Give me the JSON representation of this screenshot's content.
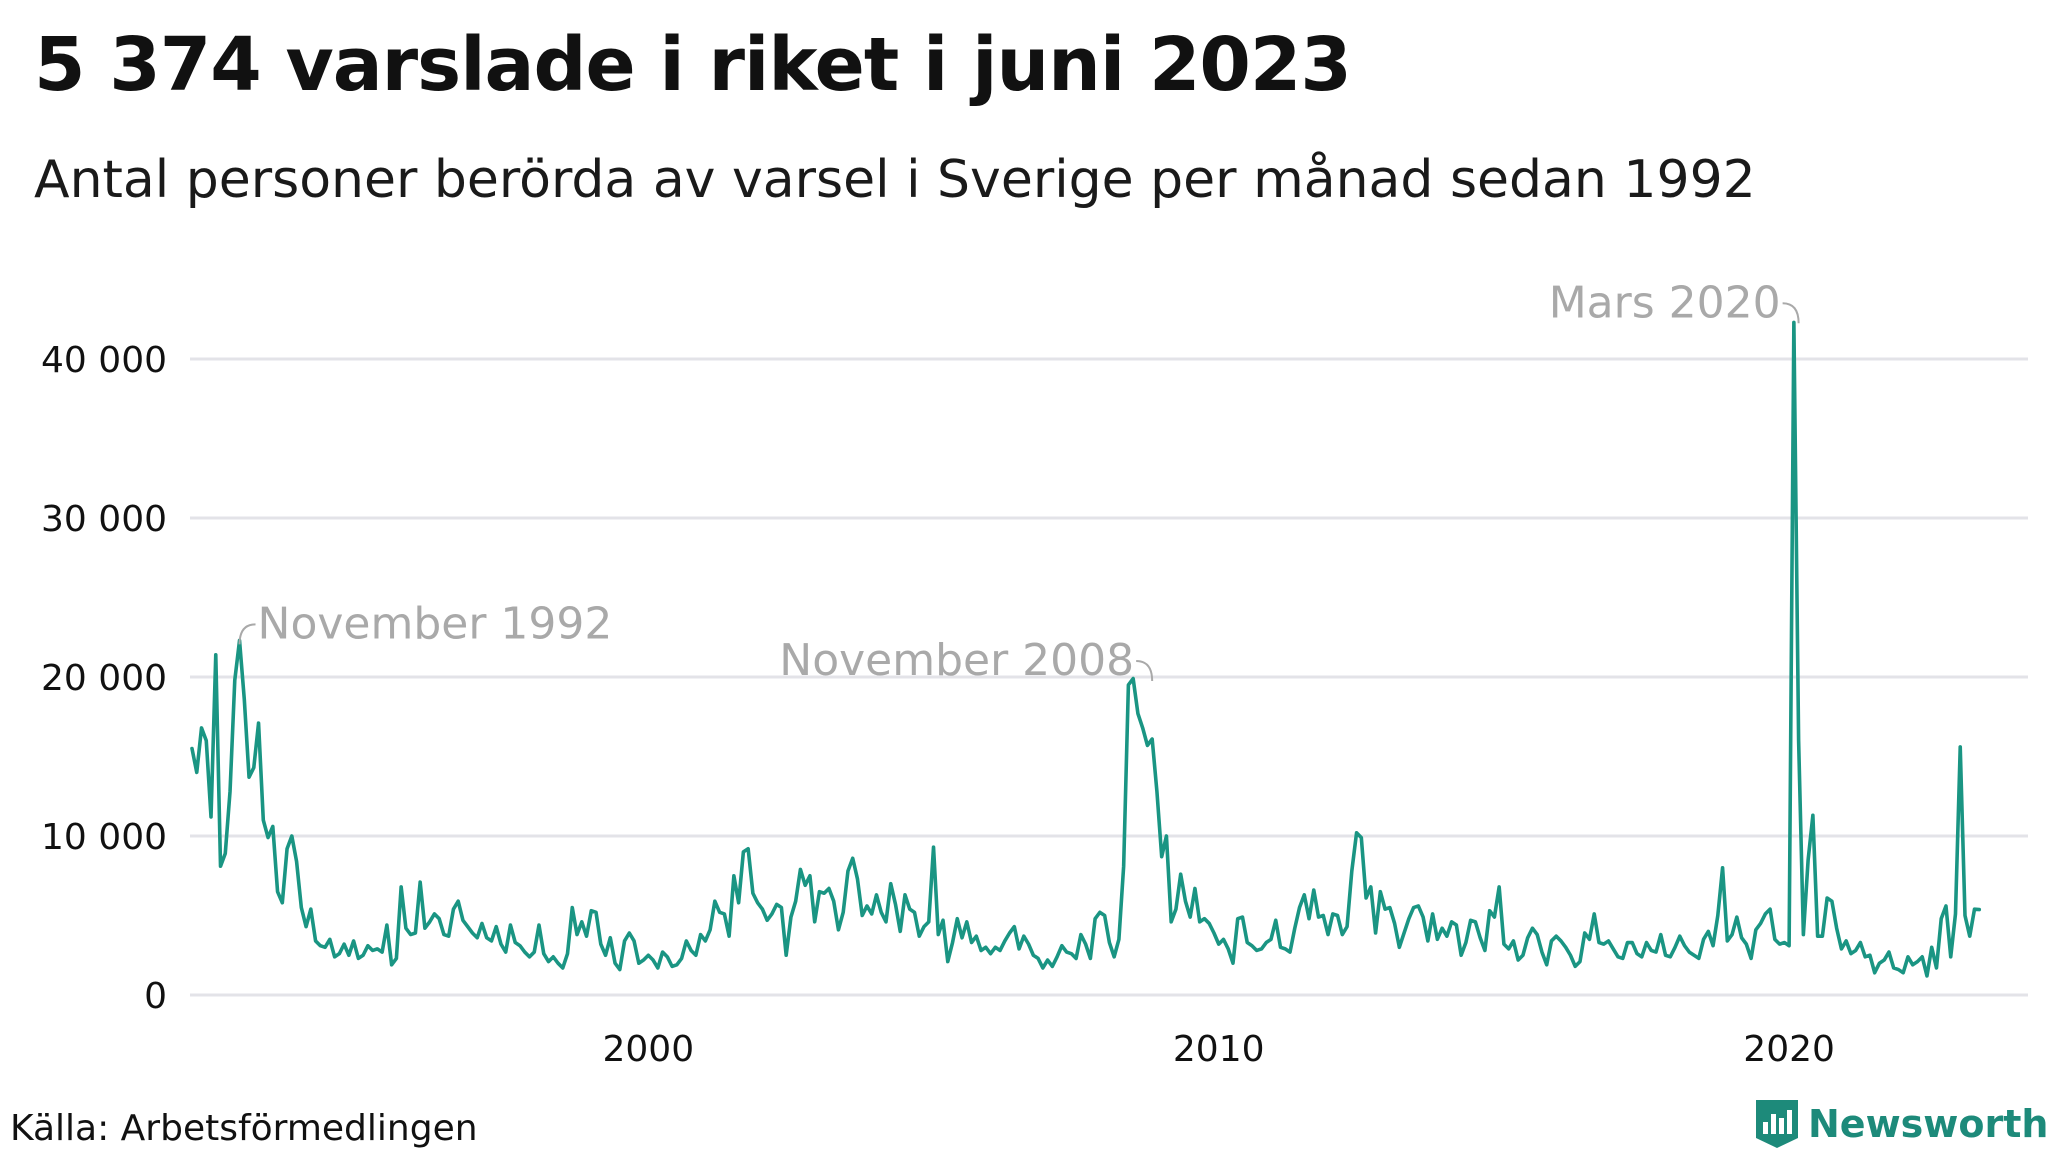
{
  "header": {
    "title": "5 374 varslade i riket i juni 2023",
    "subtitle": "Antal personer berörda av varsel i Sverige per månad sedan 1992"
  },
  "footer": {
    "source": "Källa: Arbetsförmedlingen",
    "logo_text": "Newsworthy"
  },
  "colors": {
    "line": "#1a9583",
    "grid": "#e3e3e8",
    "annotation": "#a9a9a9",
    "brand": "#1d8a7a"
  },
  "icons": {
    "logo": "newsworthy-logo-icon"
  },
  "chart_data": {
    "type": "line",
    "title": "5 374 varslade i riket i juni 2023",
    "subtitle": "Antal personer berörda av varsel i Sverige per månad sedan 1992",
    "xlabel": "",
    "ylabel": "",
    "x_start": "1992-01",
    "x_end": "2023-06",
    "x_frequency": "monthly",
    "x_ticks": [
      2000,
      2010,
      2020
    ],
    "x_tick_labels": [
      "2000",
      "2010",
      "2020"
    ],
    "y_ticks": [
      0,
      10000,
      20000,
      30000,
      40000
    ],
    "y_tick_labels": [
      "0",
      "10 000",
      "20 000",
      "30 000",
      "40 000"
    ],
    "ylim": [
      0,
      42500
    ],
    "grid": true,
    "legend": "none",
    "annotations": [
      {
        "label": "November 1992",
        "x": "1992-11",
        "value": 22300
      },
      {
        "label": "November 2008",
        "x": "2008-11",
        "value": 20000
      },
      {
        "label": "Mars 2020",
        "x": "2020-03",
        "value": 42500
      }
    ],
    "series": [
      {
        "values": [
          15500,
          14000,
          16800,
          16000,
          11200,
          21400,
          8100,
          8900,
          12800,
          19800,
          22300,
          18600,
          13700,
          14300,
          17100,
          11000,
          9900,
          10600,
          6500,
          5800,
          9200,
          10000,
          8400,
          5500,
          4300,
          5400,
          3400,
          3100,
          3000,
          3500,
          2400,
          2600,
          3200,
          2500,
          3400,
          2300,
          2500,
          3100,
          2800,
          2900,
          2700,
          4400,
          1900,
          2300,
          6800,
          4200,
          3800,
          3900,
          7100,
          4200,
          4600,
          5100,
          4800,
          3800,
          3700,
          5400,
          5900,
          4700,
          4300,
          3900,
          3600,
          4500,
          3600,
          3400,
          4300,
          3200,
          2700,
          4400,
          3300,
          3100,
          2700,
          2400,
          2700,
          4400,
          2600,
          2100,
          2400,
          2000,
          1700,
          2600,
          5500,
          3800,
          4600,
          3700,
          5300,
          5200,
          3200,
          2500,
          3600,
          2000,
          1600,
          3400,
          3900,
          3400,
          2000,
          2200,
          2500,
          2200,
          1700,
          2700,
          2400,
          1800,
          1900,
          2300,
          3400,
          2800,
          2500,
          3800,
          3400,
          4100,
          5900,
          5200,
          5100,
          3700,
          7500,
          5800,
          9000,
          9200,
          6400,
          5800,
          5400,
          4700,
          5100,
          5700,
          5500,
          2500,
          4900,
          5900,
          7900,
          6900,
          7500,
          4600,
          6500,
          6400,
          6700,
          5900,
          4100,
          5200,
          7800,
          8600,
          7300,
          5000,
          5600,
          5100,
          6300,
          5200,
          4600,
          7000,
          5700,
          4000,
          6300,
          5400,
          5200,
          3700,
          4300,
          4600,
          9300,
          3800,
          4700,
          2100,
          3300,
          4800,
          3600,
          4600,
          3300,
          3700,
          2800,
          3000,
          2600,
          3000,
          2800,
          3400,
          3900,
          4300,
          2900,
          3700,
          3200,
          2500,
          2300,
          1700,
          2200,
          1800,
          2400,
          3100,
          2700,
          2600,
          2300,
          3800,
          3200,
          2300,
          4800,
          5200,
          5000,
          3300,
          2400,
          3500,
          8100,
          19500,
          19900,
          17700,
          16800,
          15700,
          16100,
          12800,
          8700,
          10000,
          4600,
          5400,
          7600,
          5900,
          4900,
          6700,
          4600,
          4800,
          4500,
          3900,
          3200,
          3500,
          2900,
          2000,
          4800,
          4900,
          3300,
          3100,
          2800,
          2900,
          3300,
          3500,
          4700,
          3000,
          2900,
          2700,
          4200,
          5500,
          6300,
          4800,
          6600,
          4900,
          5000,
          3800,
          5100,
          5000,
          3800,
          4300,
          7800,
          10200,
          9900,
          6100,
          6800,
          3900,
          6500,
          5400,
          5500,
          4500,
          3000,
          3900,
          4800,
          5500,
          5600,
          4900,
          3400,
          5100,
          3500,
          4200,
          3700,
          4600,
          4400,
          2500,
          3300,
          4700,
          4600,
          3600,
          2800,
          5300,
          4900,
          6800,
          3200,
          2900,
          3400,
          2200,
          2500,
          3600,
          4200,
          3800,
          2700,
          1900,
          3400,
          3700,
          3400,
          3000,
          2500,
          1800,
          2100,
          3900,
          3500,
          5100,
          3300,
          3200,
          3400,
          2900,
          2400,
          2300,
          3300,
          3300,
          2600,
          2400,
          3300,
          2800,
          2700,
          3800,
          2500,
          2400,
          3000,
          3700,
          3100,
          2700,
          2500,
          2300,
          3500,
          4000,
          3100,
          5000,
          8000,
          3400,
          3800,
          4900,
          3600,
          3200,
          2300,
          4100,
          4500,
          5100,
          5400,
          3500,
          3200,
          3300,
          3100,
          42300,
          16000,
          3800,
          8500,
          11300,
          3700,
          3700,
          6100,
          5900,
          4200,
          2900,
          3400,
          2600,
          2800,
          3300,
          2400,
          2500,
          1400,
          2000,
          2200,
          2700,
          1700,
          1600,
          1400,
          2400,
          1900,
          2100,
          2400,
          1200,
          3000,
          1700,
          4800,
          5600,
          2400,
          5100,
          15600,
          5000,
          3700,
          5400,
          5374
        ]
      }
    ]
  }
}
